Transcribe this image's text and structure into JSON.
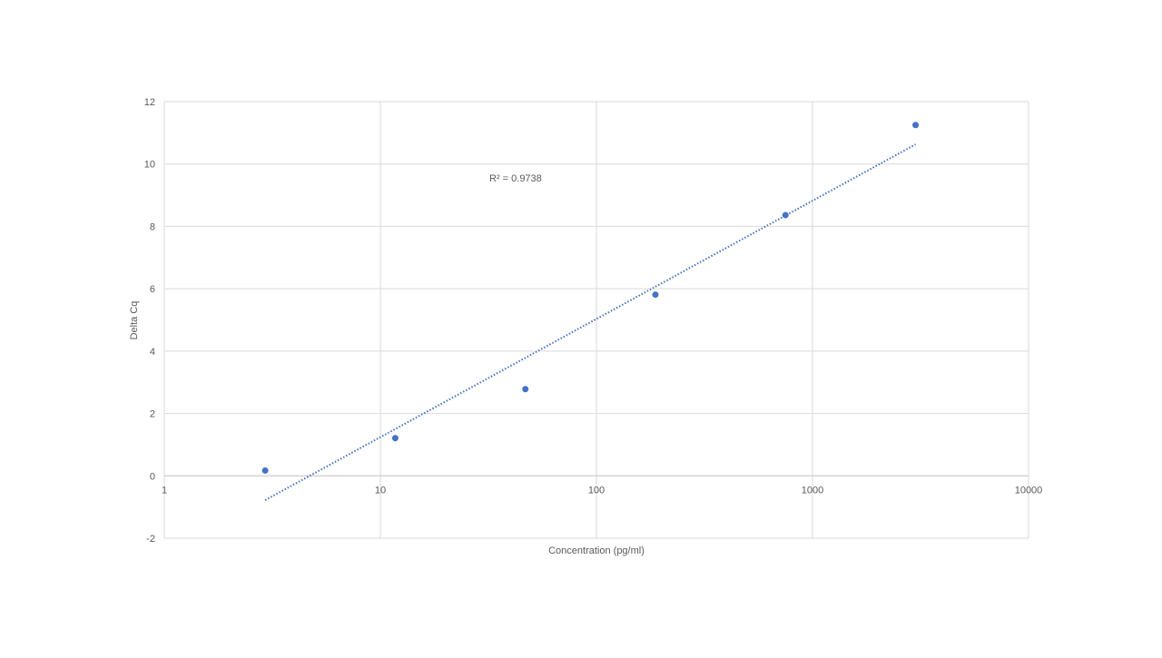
{
  "chart_data": {
    "type": "scatter",
    "title": "",
    "xlabel": "Concentration (pg/ml)",
    "ylabel": "Delta Cq",
    "x_scale": "log",
    "xlim": [
      1,
      10000
    ],
    "ylim": [
      -2,
      12
    ],
    "x_ticks": [
      1,
      10,
      100,
      1000,
      10000
    ],
    "x_tick_labels": [
      "1",
      "10",
      "100",
      "1000",
      "10000"
    ],
    "y_ticks": [
      -2,
      0,
      2,
      4,
      6,
      8,
      10,
      12
    ],
    "y_tick_labels": [
      "-2",
      "0",
      "2",
      "4",
      "6",
      "8",
      "10",
      "12"
    ],
    "grid": true,
    "legend": "none",
    "series": [
      {
        "x": [
          2.93,
          11.72,
          46.9,
          187.5,
          750,
          3000
        ],
        "y": [
          0.17,
          1.21,
          2.78,
          5.81,
          8.36,
          11.25
        ],
        "color": "#4472C4"
      }
    ],
    "trendline": {
      "type": "logarithmic",
      "x_range": [
        2.93,
        3000
      ],
      "y_range": [
        -0.78,
        10.63
      ],
      "style": "dotted",
      "color": "#4472C4"
    },
    "annotation": "R² = 0.9738"
  }
}
